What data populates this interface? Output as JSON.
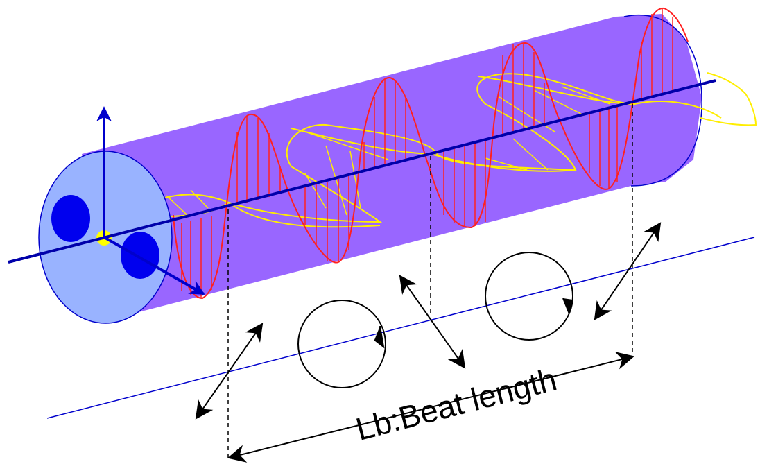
{
  "label": "Lb:Beat length",
  "colors": {
    "fiber_body": "#9966ff",
    "fiber_end_face": "#99b3ff",
    "stress_rods": "#0000ee",
    "axis": "#0000aa",
    "wave_x": "#ff0000",
    "wave_y": "#ffee00",
    "core": "#ffff00",
    "guide_line": "#0000cc",
    "annotation": "#000000"
  },
  "icons": [
    "polarization-circle-icon",
    "double-arrow-icon",
    "coordinate-axes-icon"
  ]
}
